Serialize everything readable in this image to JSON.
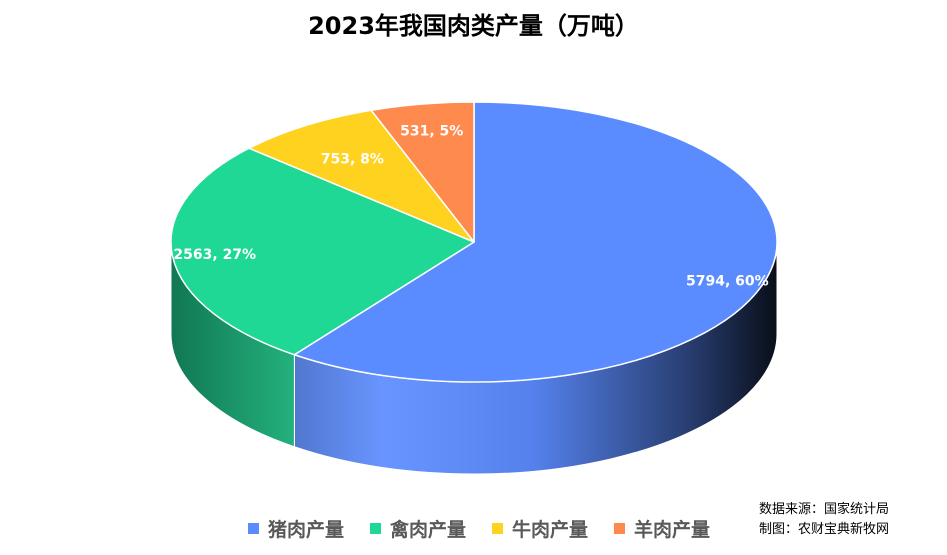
{
  "title": "2023年我国肉类产量（万吨）",
  "source": {
    "line1": "数据来源：国家统计局",
    "line2": "制图：农财宝典新牧网"
  },
  "chart_data": {
    "type": "pie",
    "title": "2023年我国肉类产量（万吨）",
    "slices": [
      {
        "name": "猪肉产量",
        "value": 5794,
        "percent": 60,
        "label": "5794, 60%",
        "color": "#5B8CFF"
      },
      {
        "name": "禽肉产量",
        "value": 2563,
        "percent": 27,
        "label": "2563, 27%",
        "color": "#1FD895"
      },
      {
        "name": "牛肉产量",
        "value": 753,
        "percent": 8,
        "label": "753, 8%",
        "color": "#FFD21F"
      },
      {
        "name": "羊肉产量",
        "value": 531,
        "percent": 5,
        "label": "531, 5%",
        "color": "#FF8A4D"
      }
    ],
    "legend_position": "bottom",
    "style": "3d"
  }
}
